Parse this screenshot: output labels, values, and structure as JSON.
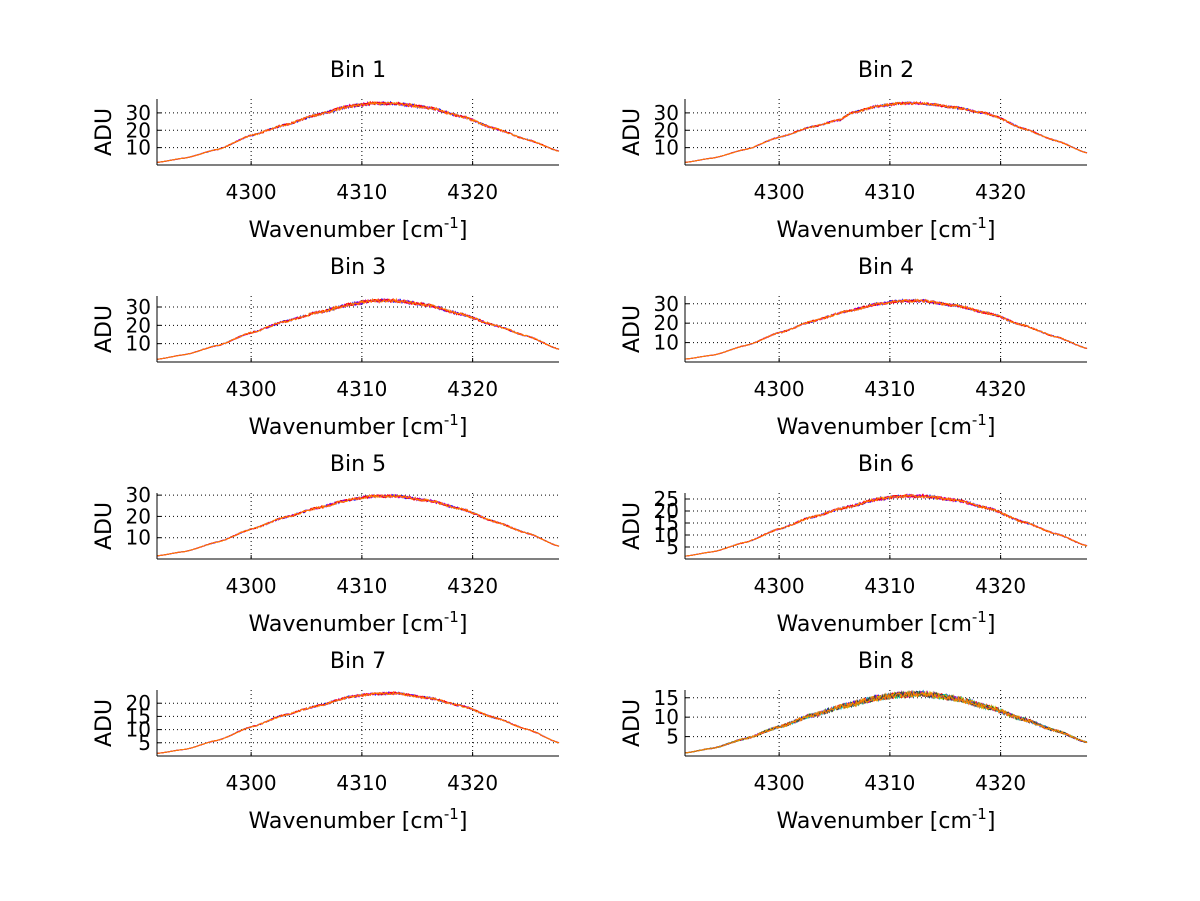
{
  "figure": {
    "background": "#ffffff",
    "grid_color": "#000000",
    "series_colors": [
      "#0000ff",
      "#00aa00",
      "#ff0000",
      "#00bfbf",
      "#bf00bf",
      "#bfbf00",
      "#404040",
      "#ff8000"
    ]
  },
  "chart_data": [
    {
      "type": "line",
      "title": "Bin 1",
      "xlabel": "Wavenumber [cm",
      "xlabel_sup": "-1",
      "xlabel_end": "]",
      "ylabel": "ADU",
      "xlim": [
        4291.5,
        4327.8
      ],
      "ylim": [
        0,
        38
      ],
      "xticks": [
        4300,
        4310,
        4320
      ],
      "yticks": [
        10,
        20,
        30
      ],
      "grid": true,
      "noise": 1.0,
      "x": [
        4291.5,
        4294,
        4297,
        4300,
        4303,
        4306,
        4309,
        4311,
        4313,
        4316,
        4319,
        4322,
        4325,
        4327.8
      ],
      "y": [
        1.5,
        4,
        9,
        17,
        23,
        29,
        34,
        35.5,
        35.5,
        33,
        28,
        21,
        14.5,
        8
      ]
    },
    {
      "type": "line",
      "title": "Bin 2",
      "xlabel": "Wavenumber [cm",
      "xlabel_sup": "-1",
      "xlabel_end": "]",
      "ylabel": "ADU",
      "xlim": [
        4291.5,
        4327.8
      ],
      "ylim": [
        0,
        38
      ],
      "xticks": [
        4300,
        4310,
        4320
      ],
      "yticks": [
        10,
        20,
        30
      ],
      "grid": true,
      "noise": 0.8,
      "x": [
        4291.5,
        4294,
        4297,
        4300,
        4303,
        4305.5,
        4306.5,
        4309,
        4311,
        4313,
        4316,
        4318.5,
        4319.5,
        4322,
        4325,
        4327.8
      ],
      "y": [
        1.5,
        4,
        9,
        16,
        22,
        26,
        30,
        34,
        35.5,
        35.5,
        33,
        30,
        28,
        21,
        14,
        7
      ]
    },
    {
      "type": "line",
      "title": "Bin 3",
      "xlabel": "Wavenumber [cm",
      "xlabel_sup": "-1",
      "xlabel_end": "]",
      "ylabel": "ADU",
      "xlim": [
        4291.5,
        4327.8
      ],
      "ylim": [
        0,
        36
      ],
      "xticks": [
        4300,
        4310,
        4320
      ],
      "yticks": [
        10,
        20,
        30
      ],
      "grid": true,
      "noise": 1.0,
      "x": [
        4291.5,
        4294,
        4297,
        4300,
        4303,
        4306,
        4309,
        4311,
        4313,
        4316,
        4319,
        4322,
        4325,
        4327.8
      ],
      "y": [
        1.5,
        4,
        9,
        16,
        22,
        27,
        31.5,
        33.5,
        33.5,
        31,
        26,
        20,
        14,
        7
      ]
    },
    {
      "type": "line",
      "title": "Bin 4",
      "xlabel": "Wavenumber [cm",
      "xlabel_sup": "-1",
      "xlabel_end": "]",
      "ylabel": "ADU",
      "xlim": [
        4291.5,
        4327.8
      ],
      "ylim": [
        0,
        34
      ],
      "xticks": [
        4300,
        4310,
        4320
      ],
      "yticks": [
        10,
        20,
        30
      ],
      "grid": true,
      "noise": 0.8,
      "x": [
        4291.5,
        4294,
        4297,
        4300,
        4303,
        4306,
        4309,
        4311,
        4313,
        4316,
        4319,
        4322,
        4325,
        4327.8
      ],
      "y": [
        1.5,
        3.5,
        8.5,
        15,
        21,
        26,
        30,
        31.5,
        31.5,
        29,
        25,
        19,
        13,
        7
      ]
    },
    {
      "type": "line",
      "title": "Bin 5",
      "xlabel": "Wavenumber [cm",
      "xlabel_sup": "-1",
      "xlabel_end": "]",
      "ylabel": "ADU",
      "xlim": [
        4291.5,
        4327.8
      ],
      "ylim": [
        0,
        31
      ],
      "xticks": [
        4300,
        4310,
        4320
      ],
      "yticks": [
        10,
        20,
        30
      ],
      "grid": true,
      "noise": 0.7,
      "x": [
        4291.5,
        4294,
        4297,
        4300,
        4303,
        4306,
        4309,
        4311,
        4313,
        4316,
        4319,
        4322,
        4325,
        4327.8
      ],
      "y": [
        1.5,
        3.5,
        8,
        14,
        19.5,
        24,
        28,
        29.5,
        29.5,
        27.5,
        23.5,
        17.5,
        12,
        6
      ]
    },
    {
      "type": "line",
      "title": "Bin 6",
      "xlabel": "Wavenumber [cm",
      "xlabel_sup": "-1",
      "xlabel_end": "]",
      "ylabel": "ADU",
      "xlim": [
        4291.5,
        4327.8
      ],
      "ylim": [
        0,
        27.5
      ],
      "xticks": [
        4300,
        4310,
        4320
      ],
      "yticks": [
        5,
        10,
        15,
        20,
        25
      ],
      "grid": true,
      "noise": 0.7,
      "x": [
        4291.5,
        4294,
        4297,
        4300,
        4303,
        4306,
        4309,
        4311,
        4313,
        4316,
        4319,
        4322,
        4325,
        4327.8
      ],
      "y": [
        1.2,
        3,
        7,
        12.5,
        17.5,
        21.5,
        25,
        26.2,
        26.2,
        24.5,
        21,
        15.5,
        10.5,
        5.5
      ]
    },
    {
      "type": "line",
      "title": "Bin 7",
      "xlabel": "Wavenumber [cm",
      "xlabel_sup": "-1",
      "xlabel_end": "]",
      "ylabel": "ADU",
      "xlim": [
        4291.5,
        4327.8
      ],
      "ylim": [
        0,
        25
      ],
      "xticks": [
        4300,
        4310,
        4320
      ],
      "yticks": [
        5,
        10,
        15,
        20
      ],
      "grid": true,
      "noise": 0.5,
      "x": [
        4291.5,
        4294,
        4297,
        4300,
        4303,
        4306,
        4309,
        4311,
        4313,
        4316,
        4319,
        4322,
        4325,
        4327.8
      ],
      "y": [
        1,
        2.5,
        6,
        11,
        15.5,
        19,
        22.5,
        23.5,
        23.8,
        22,
        19,
        14.5,
        10,
        5
      ]
    },
    {
      "type": "line",
      "title": "Bin 8",
      "xlabel": "Wavenumber [cm",
      "xlabel_sup": "-1",
      "xlabel_end": "]",
      "ylabel": "ADU",
      "xlim": [
        4291.5,
        4327.8
      ],
      "ylim": [
        0,
        17
      ],
      "xticks": [
        4300,
        4310,
        4320
      ],
      "yticks": [
        5,
        10,
        15
      ],
      "grid": true,
      "noise": 0.8,
      "x": [
        4291.5,
        4294,
        4297,
        4300,
        4303,
        4306,
        4309,
        4311,
        4313,
        4316,
        4319,
        4322,
        4325,
        4327.8
      ],
      "y": [
        0.8,
        2,
        4.5,
        7.5,
        10.5,
        13,
        15,
        15.8,
        16,
        14.8,
        12.5,
        9.5,
        6.5,
        3.5
      ]
    }
  ]
}
